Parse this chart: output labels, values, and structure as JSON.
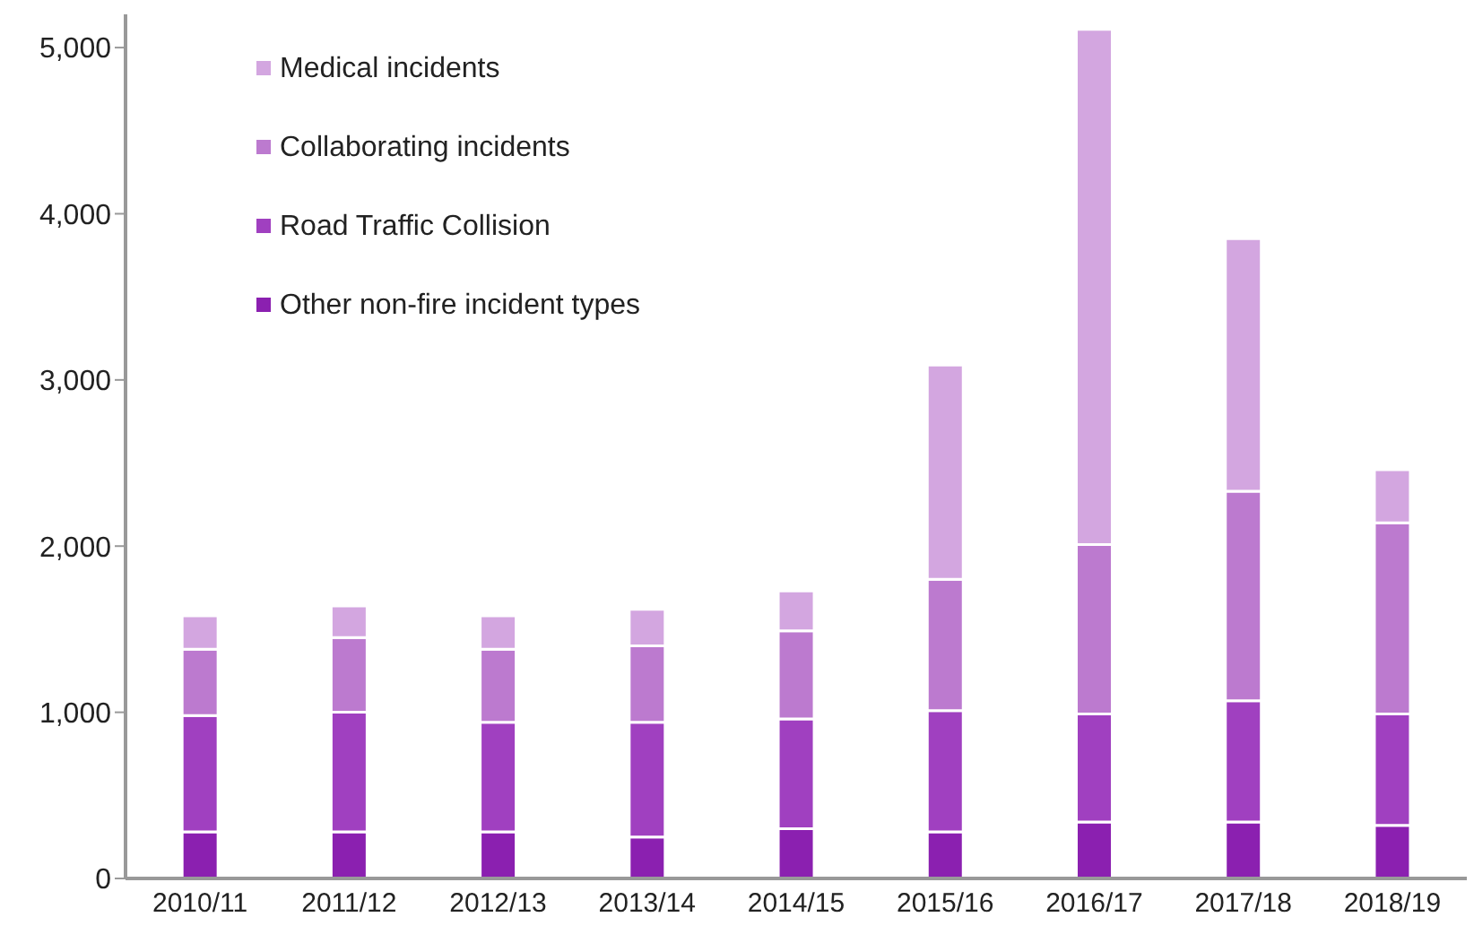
{
  "chart_data": {
    "type": "bar",
    "stacked": true,
    "categories": [
      "2010/11",
      "2011/12",
      "2012/13",
      "2013/14",
      "2014/15",
      "2015/16",
      "2016/17",
      "2017/18",
      "2018/19"
    ],
    "series": [
      {
        "name": "Other non-fire incident types",
        "color": "#8b20b0",
        "values": [
          280,
          280,
          280,
          250,
          300,
          280,
          340,
          340,
          320
        ]
      },
      {
        "name": "Road Traffic Collision",
        "color": "#a040c0",
        "values": [
          700,
          720,
          660,
          690,
          660,
          730,
          650,
          730,
          670
        ]
      },
      {
        "name": "Collaborating incidents",
        "color": "#bc7acf",
        "values": [
          400,
          450,
          440,
          460,
          530,
          790,
          1020,
          1260,
          1150
        ]
      },
      {
        "name": "Medical incidents",
        "color": "#d3a6e0",
        "values": [
          200,
          190,
          200,
          220,
          240,
          1290,
          3100,
          1520,
          320
        ]
      }
    ],
    "ylim": [
      0,
      5200
    ],
    "yticks": [
      0,
      {
        "value": 1000,
        "label": "1,000"
      },
      {
        "value": 2000,
        "label": "2,000"
      },
      {
        "value": 3000,
        "label": "3,000"
      },
      {
        "value": 4000,
        "label": "4,000"
      },
      {
        "value": 5000,
        "label": "5,000"
      }
    ],
    "grid": false,
    "legend": "top left"
  }
}
